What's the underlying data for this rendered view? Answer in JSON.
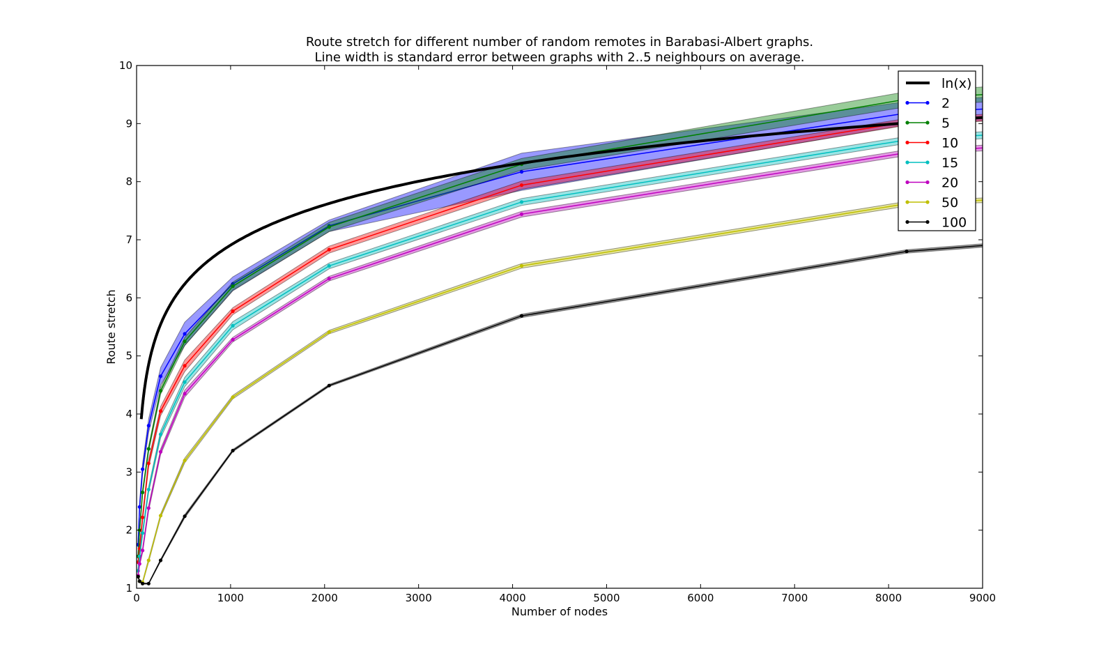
{
  "chart_data": {
    "type": "line",
    "title": "Route stretch for different number of random remotes in Barabasi-Albert graphs.",
    "subtitle": "Line width is standard error between graphs with 2..5 neighbours on average.",
    "xlabel": "Number of nodes",
    "ylabel": "Route stretch",
    "xlim": [
      0,
      9000
    ],
    "ylim": [
      1,
      10
    ],
    "xticks": [
      "0",
      "1000",
      "2000",
      "3000",
      "4000",
      "5000",
      "6000",
      "7000",
      "8000",
      "9000"
    ],
    "yticks": [
      "1",
      "2",
      "3",
      "4",
      "5",
      "6",
      "7",
      "8",
      "9",
      "10"
    ],
    "grid": false,
    "legend_position": "top-right",
    "reference_curve": {
      "name": "ln(x)",
      "color": "#000000",
      "function": "ln(x)",
      "x_start": 50,
      "x_end": 9000
    },
    "x": [
      16,
      32,
      64,
      128,
      256,
      512,
      1024,
      2048,
      4096,
      8192
    ],
    "series": [
      {
        "name": "2",
        "color": "#0000ff",
        "values": [
          1.75,
          2.4,
          3.05,
          3.8,
          4.65,
          5.38,
          6.24,
          7.24,
          8.17,
          9.18
        ],
        "err": [
          0.05,
          0.08,
          0.1,
          0.12,
          0.15,
          0.2,
          0.12,
          0.1,
          0.32,
          0.2
        ],
        "end_y": 9.25
      },
      {
        "name": "5",
        "color": "#008000",
        "values": [
          1.55,
          2.0,
          2.65,
          3.4,
          4.4,
          5.25,
          6.2,
          7.22,
          8.3,
          9.42
        ],
        "err": [
          0.05,
          0.05,
          0.05,
          0.05,
          0.06,
          0.07,
          0.07,
          0.08,
          0.1,
          0.13
        ],
        "end_y": 9.5
      },
      {
        "name": "10",
        "color": "#ff0000",
        "values": [
          1.45,
          1.68,
          2.22,
          3.15,
          4.05,
          4.83,
          5.77,
          6.83,
          7.94,
          9.03
        ],
        "err": [
          0.04,
          0.05,
          0.06,
          0.07,
          0.08,
          0.1,
          0.06,
          0.06,
          0.07,
          0.06
        ],
        "end_y": 9.1
      },
      {
        "name": "15",
        "color": "#00bfbf",
        "values": [
          1.3,
          1.55,
          1.95,
          2.7,
          3.65,
          4.55,
          5.52,
          6.55,
          7.65,
          8.72
        ],
        "err": [
          0.04,
          0.04,
          0.05,
          0.05,
          0.06,
          0.08,
          0.07,
          0.05,
          0.06,
          0.06
        ],
        "end_y": 8.8
      },
      {
        "name": "20",
        "color": "#bf00bf",
        "values": [
          1.22,
          1.42,
          1.65,
          2.38,
          3.35,
          4.35,
          5.28,
          6.33,
          7.44,
          8.5
        ],
        "err": [
          0.03,
          0.03,
          0.04,
          0.05,
          0.05,
          0.06,
          0.04,
          0.04,
          0.05,
          0.05
        ],
        "end_y": 8.58
      },
      {
        "name": "50",
        "color": "#bfbf00",
        "values": [
          1.2,
          1.12,
          1.1,
          1.48,
          2.25,
          3.2,
          4.29,
          5.41,
          6.55,
          7.62
        ],
        "err": [
          0.02,
          0.02,
          0.02,
          0.03,
          0.03,
          0.04,
          0.03,
          0.03,
          0.04,
          0.04
        ],
        "end_y": 7.68
      },
      {
        "name": "100",
        "color": "#000000",
        "values": [
          1.2,
          1.12,
          1.08,
          1.08,
          1.48,
          2.24,
          3.37,
          4.49,
          5.69,
          6.8
        ],
        "err": [
          0.01,
          0.01,
          0.01,
          0.01,
          0.02,
          0.03,
          0.02,
          0.02,
          0.03,
          0.03
        ],
        "end_y": 6.9
      }
    ]
  }
}
